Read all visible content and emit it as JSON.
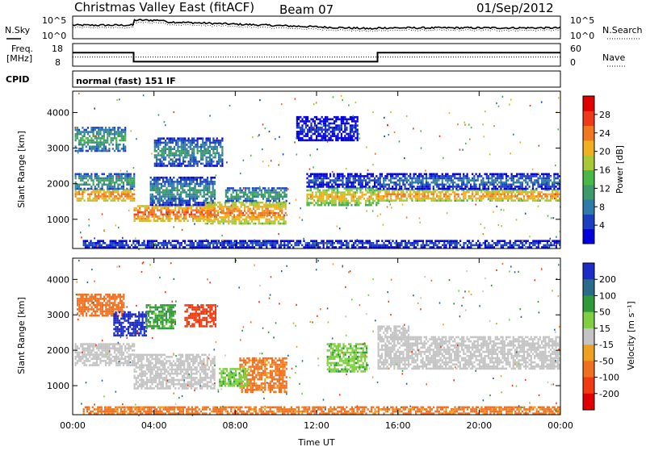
{
  "header": {
    "title": "Christmas Valley East (fitACF)",
    "beam": "Beam 07",
    "date": "01/Sep/2012"
  },
  "noise_panel": {
    "left_label": "N.Sky",
    "right_label": "N.Search",
    "left_ticks": [
      "10^5",
      "10^0"
    ],
    "right_ticks": [
      "10^5",
      "10^0"
    ]
  },
  "freq_panel": {
    "left_label_1": "Freq.",
    "left_label_2": "[MHz]",
    "right_label": "Nave",
    "left_ticks": [
      "18",
      "8"
    ],
    "right_ticks": [
      "60",
      "0"
    ],
    "freq_steps": [
      {
        "t0": 0.0,
        "t1": 3.0,
        "mhz": 14.0
      },
      {
        "t0": 3.0,
        "t1": 15.0,
        "mhz": 10.0
      },
      {
        "t0": 15.0,
        "t1": 24.0,
        "mhz": 14.0
      }
    ],
    "nave_level": 24
  },
  "cpid": {
    "label": "CPID",
    "value": "normal (fast) 151 IF"
  },
  "chart_data": [
    {
      "type": "heatmap",
      "name": "power",
      "ylabel": "Slant Range [km]",
      "xlabel": "Time UT",
      "xlim": [
        0,
        24
      ],
      "ylim": [
        180,
        4600
      ],
      "x_ticks": [
        "00:00",
        "04:00",
        "08:00",
        "12:00",
        "16:00",
        "20:00",
        "00:00"
      ],
      "y_ticks": [
        "1000",
        "2000",
        "3000",
        "4000"
      ],
      "colorbar": {
        "label": "Power [dB]",
        "ticks": [
          "4",
          "8",
          "12",
          "16",
          "20",
          "24",
          "28"
        ],
        "colors": [
          "#0000dd",
          "#1a3fbf",
          "#2e7aa8",
          "#3f9a6a",
          "#48b848",
          "#a8c838",
          "#f0b020",
          "#f07820",
          "#ee3a18",
          "#e00000"
        ]
      },
      "features": [
        {
          "t0": 0.1,
          "t1": 3.0,
          "r0": 1550,
          "r1": 1850,
          "p": 26
        },
        {
          "t0": 0.1,
          "t1": 3.0,
          "r0": 1850,
          "r1": 2300,
          "p": 14
        },
        {
          "t0": 0.1,
          "t1": 2.6,
          "r0": 2900,
          "r1": 3600,
          "p": 14
        },
        {
          "t0": 3.0,
          "t1": 7.0,
          "r0": 950,
          "r1": 1400,
          "p": 27
        },
        {
          "t0": 3.8,
          "t1": 7.0,
          "r0": 1400,
          "r1": 2200,
          "p": 12
        },
        {
          "t0": 4.0,
          "t1": 7.4,
          "r0": 2500,
          "r1": 3300,
          "p": 12
        },
        {
          "t0": 6.5,
          "t1": 10.5,
          "r0": 900,
          "r1": 1500,
          "p": 25
        },
        {
          "t0": 7.5,
          "t1": 10.5,
          "r0": 1500,
          "r1": 1900,
          "p": 14
        },
        {
          "t0": 11.5,
          "t1": 15.0,
          "r0": 1400,
          "r1": 1900,
          "p": 22
        },
        {
          "t0": 11.5,
          "t1": 15.0,
          "r0": 1900,
          "r1": 2300,
          "p": 8
        },
        {
          "t0": 11.0,
          "t1": 14.0,
          "r0": 3200,
          "r1": 3900,
          "p": 6
        },
        {
          "t0": 15.0,
          "t1": 24.0,
          "r0": 1500,
          "r1": 1850,
          "p": 25
        },
        {
          "t0": 15.0,
          "t1": 24.0,
          "r0": 1850,
          "r1": 2300,
          "p": 10
        },
        {
          "t0": 0.5,
          "t1": 24.0,
          "r0": 200,
          "r1": 420,
          "p": 9
        }
      ]
    },
    {
      "type": "heatmap",
      "name": "velocity",
      "ylabel": "Slant Range [km]",
      "xlabel": "Time UT",
      "xlim": [
        0,
        24
      ],
      "ylim": [
        180,
        4600
      ],
      "x_ticks": [
        "00:00",
        "04:00",
        "08:00",
        "12:00",
        "16:00",
        "20:00",
        "00:00"
      ],
      "y_ticks": [
        "1000",
        "2000",
        "3000",
        "4000"
      ],
      "colorbar": {
        "label": "Velocity [m s⁻¹]",
        "ticks": [
          "200",
          "100",
          "50",
          "15",
          "-15",
          "-50",
          "-100",
          "-200"
        ],
        "colors": [
          "#1c2cc8",
          "#2a6a8a",
          "#2e9a3a",
          "#7ed040",
          "#c4c4c4",
          "#f0a020",
          "#f07020",
          "#f03a10",
          "#e00000"
        ]
      },
      "features": [
        {
          "t0": 0.1,
          "t1": 3.0,
          "r0": 1550,
          "r1": 2200,
          "v": 0
        },
        {
          "t0": 3.0,
          "t1": 7.0,
          "r0": 950,
          "r1": 1900,
          "v": 0
        },
        {
          "t0": 0.2,
          "t1": 2.5,
          "r0": 3000,
          "r1": 3600,
          "v": -80
        },
        {
          "t0": 2.0,
          "t1": 3.6,
          "r0": 2400,
          "r1": 3100,
          "v": 220
        },
        {
          "t0": 3.6,
          "t1": 5.0,
          "r0": 2600,
          "r1": 3300,
          "v": 60
        },
        {
          "t0": 5.5,
          "t1": 7.0,
          "r0": 2700,
          "r1": 3300,
          "v": -150
        },
        {
          "t0": 8.2,
          "t1": 10.5,
          "r0": 800,
          "r1": 1800,
          "v": -60
        },
        {
          "t0": 7.2,
          "t1": 8.6,
          "r0": 1000,
          "r1": 1500,
          "v": 40
        },
        {
          "t0": 12.5,
          "t1": 14.5,
          "r0": 1400,
          "r1": 2200,
          "v": 40
        },
        {
          "t0": 15.0,
          "t1": 24.0,
          "r0": 1500,
          "r1": 2400,
          "v": 0
        },
        {
          "t0": 15.0,
          "t1": 16.5,
          "r0": 2300,
          "r1": 2700,
          "v": 0
        },
        {
          "t0": 0.5,
          "t1": 24.0,
          "r0": 200,
          "r1": 420,
          "v": -60
        }
      ]
    }
  ]
}
